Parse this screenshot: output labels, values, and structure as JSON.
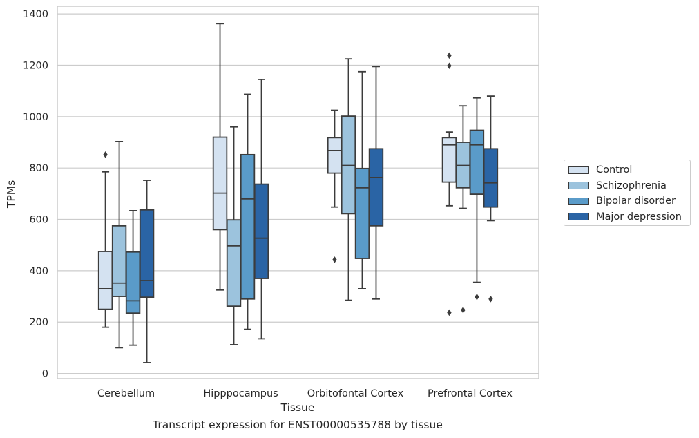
{
  "chart_data": {
    "type": "boxplot",
    "xlabel": "Tissue",
    "ylabel": "TPMs",
    "caption": "Transcript expression for ENST00000535788 by tissue",
    "ylim": [
      -20,
      1430
    ],
    "yticks": [
      0,
      200,
      400,
      600,
      800,
      1000,
      1200,
      1400
    ],
    "grid": true,
    "legend_position": "right",
    "categories": [
      "Cerebellum",
      "Hipppocampus",
      "Orbitofontal Cortex",
      "Prefrontal Cortex"
    ],
    "series": [
      {
        "name": "Control",
        "color": "#d4e2f1",
        "boxes": [
          {
            "whisker_low": 180,
            "q1": 250,
            "median": 330,
            "q3": 475,
            "whisker_high": 785,
            "outliers": [
              852
            ]
          },
          {
            "whisker_low": 325,
            "q1": 560,
            "median": 702,
            "q3": 920,
            "whisker_high": 1362,
            "outliers": []
          },
          {
            "whisker_low": 648,
            "q1": 780,
            "median": 868,
            "q3": 918,
            "whisker_high": 1025,
            "outliers": [
              443
            ]
          },
          {
            "whisker_low": 653,
            "q1": 745,
            "median": 890,
            "q3": 918,
            "whisker_high": 940,
            "outliers": [
              1238,
              1198,
              237
            ]
          }
        ]
      },
      {
        "name": "Schizophrenia",
        "color": "#9cc3dd",
        "boxes": [
          {
            "whisker_low": 100,
            "q1": 300,
            "median": 352,
            "q3": 575,
            "whisker_high": 903,
            "outliers": []
          },
          {
            "whisker_low": 112,
            "q1": 262,
            "median": 497,
            "q3": 598,
            "whisker_high": 960,
            "outliers": []
          },
          {
            "whisker_low": 285,
            "q1": 622,
            "median": 810,
            "q3": 1002,
            "whisker_high": 1225,
            "outliers": []
          },
          {
            "whisker_low": 643,
            "q1": 723,
            "median": 810,
            "q3": 900,
            "whisker_high": 1042,
            "outliers": [
              247
            ]
          }
        ]
      },
      {
        "name": "Bipolar disorder",
        "color": "#5a9bc9",
        "boxes": [
          {
            "whisker_low": 110,
            "q1": 235,
            "median": 283,
            "q3": 473,
            "whisker_high": 634,
            "outliers": []
          },
          {
            "whisker_low": 172,
            "q1": 290,
            "median": 680,
            "q3": 852,
            "whisker_high": 1087,
            "outliers": []
          },
          {
            "whisker_low": 330,
            "q1": 448,
            "median": 723,
            "q3": 798,
            "whisker_high": 1175,
            "outliers": []
          },
          {
            "whisker_low": 355,
            "q1": 698,
            "median": 890,
            "q3": 947,
            "whisker_high": 1073,
            "outliers": [
              298
            ]
          }
        ]
      },
      {
        "name": "Major depression",
        "color": "#2a64a5",
        "boxes": [
          {
            "whisker_low": 42,
            "q1": 297,
            "median": 362,
            "q3": 637,
            "whisker_high": 752,
            "outliers": []
          },
          {
            "whisker_low": 135,
            "q1": 370,
            "median": 527,
            "q3": 737,
            "whisker_high": 1145,
            "outliers": []
          },
          {
            "whisker_low": 290,
            "q1": 575,
            "median": 763,
            "q3": 875,
            "whisker_high": 1195,
            "outliers": []
          },
          {
            "whisker_low": 595,
            "q1": 648,
            "median": 742,
            "q3": 875,
            "whisker_high": 1080,
            "outliers": [
              290
            ]
          }
        ]
      }
    ]
  }
}
